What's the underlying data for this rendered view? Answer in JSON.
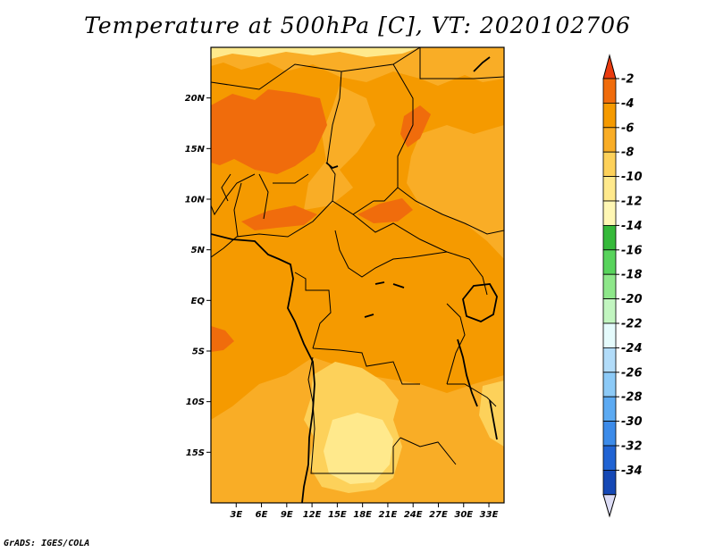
{
  "title": "Temperature at 500hPa [C], VT: 2020102706",
  "credit": "GrADS: IGES/COLA",
  "map": {
    "projection": "lat-lon",
    "lon_range": [
      0,
      34.8
    ],
    "lat_range": [
      -20,
      25
    ],
    "lat_ticks": [
      {
        "value": 20,
        "label": "20N"
      },
      {
        "value": 15,
        "label": "15N"
      },
      {
        "value": 10,
        "label": "10N"
      },
      {
        "value": 5,
        "label": "5N"
      },
      {
        "value": 0,
        "label": "EQ"
      },
      {
        "value": -5,
        "label": "5S"
      },
      {
        "value": -10,
        "label": "10S"
      },
      {
        "value": -15,
        "label": "15S"
      }
    ],
    "lon_ticks": [
      {
        "value": 3,
        "label": "3E"
      },
      {
        "value": 6,
        "label": "6E"
      },
      {
        "value": 9,
        "label": "9E"
      },
      {
        "value": 12,
        "label": "12E"
      },
      {
        "value": 15,
        "label": "15E"
      },
      {
        "value": 18,
        "label": "18E"
      },
      {
        "value": 21,
        "label": "21E"
      },
      {
        "value": 24,
        "label": "24E"
      },
      {
        "value": 27,
        "label": "27E"
      },
      {
        "value": 30,
        "label": "30E"
      },
      {
        "value": 33,
        "label": "33E"
      }
    ]
  },
  "colorbar": {
    "levels": [
      {
        "label": "-2",
        "color": "#f06c0c"
      },
      {
        "label": "-4",
        "color": "#f59a00"
      },
      {
        "label": "-6",
        "color": "#f9ad26"
      },
      {
        "label": "-8",
        "color": "#fdd15a"
      },
      {
        "label": "-10",
        "color": "#ffe98c"
      },
      {
        "label": "-12",
        "color": "#fff7b4"
      },
      {
        "label": "-14",
        "color": "#35b93a"
      },
      {
        "label": "-16",
        "color": "#58d35c"
      },
      {
        "label": "-18",
        "color": "#8ee78a"
      },
      {
        "label": "-20",
        "color": "#c2f5c0"
      },
      {
        "label": "-22",
        "color": "#e5fbfc"
      },
      {
        "label": "-24",
        "color": "#b2dcf9"
      },
      {
        "label": "-26",
        "color": "#8ccaf7"
      },
      {
        "label": "-28",
        "color": "#5caaf2"
      },
      {
        "label": "-30",
        "color": "#3c8be9"
      },
      {
        "label": "-32",
        "color": "#2063d3"
      },
      {
        "label": "-34",
        "color": "#1548b5"
      }
    ],
    "top_arrow_color": "#ea3b0f",
    "bottom_color": "#0c1a78",
    "bottom_arrow_color": "#dcdcf5"
  }
}
